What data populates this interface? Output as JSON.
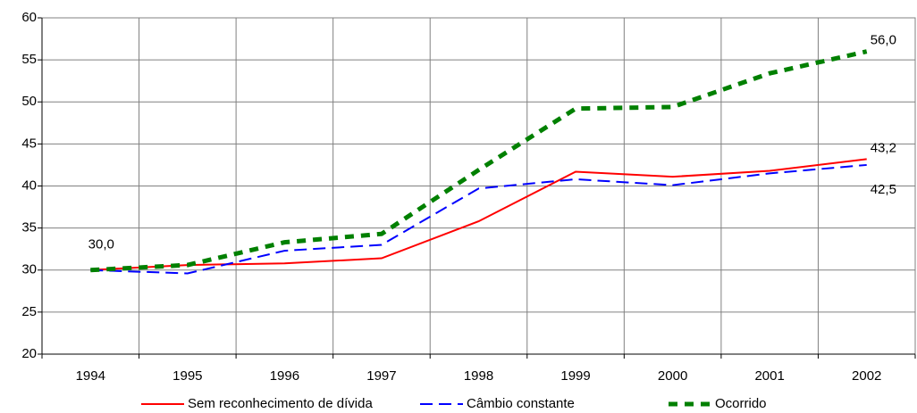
{
  "chart_data": {
    "type": "line",
    "categories": [
      "1994",
      "1995",
      "1996",
      "1997",
      "1998",
      "1999",
      "2000",
      "2001",
      "2002"
    ],
    "series": [
      {
        "name": "Sem reconhecimento de dívida",
        "color": "#ff0000",
        "values": [
          30.0,
          30.6,
          30.8,
          31.4,
          35.8,
          41.7,
          41.1,
          41.8,
          43.2
        ],
        "value_labels": [
          null,
          null,
          null,
          null,
          null,
          null,
          null,
          null,
          "43,2"
        ]
      },
      {
        "name": "Câmbio constante",
        "color": "#0000ff",
        "values": [
          30.0,
          29.6,
          32.3,
          33.0,
          39.7,
          40.8,
          40.1,
          41.5,
          42.5
        ],
        "value_labels": [
          null,
          null,
          null,
          null,
          null,
          null,
          null,
          null,
          "42,5"
        ]
      },
      {
        "name": "Ocorrido",
        "color": "#008000",
        "values": [
          30.0,
          30.6,
          33.3,
          34.3,
          41.9,
          49.2,
          49.4,
          53.4,
          56.0
        ],
        "value_labels": [
          "30,0",
          null,
          null,
          null,
          null,
          null,
          null,
          null,
          "56,0"
        ]
      }
    ],
    "ylim": [
      20,
      60
    ],
    "yticks": [
      20,
      25,
      30,
      35,
      40,
      45,
      50,
      55,
      60
    ],
    "grid": true,
    "legend": "bottom"
  }
}
